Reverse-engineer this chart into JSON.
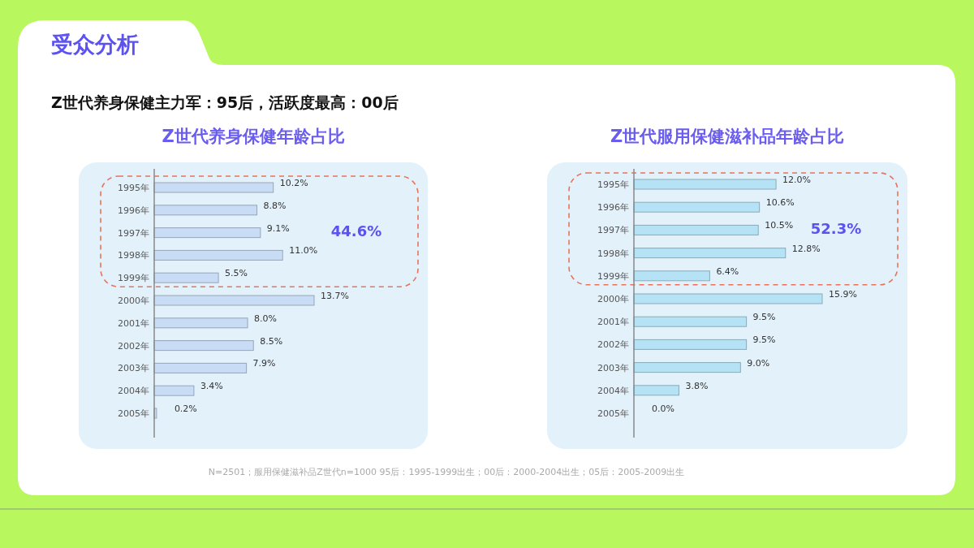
{
  "chart_data": [
    {
      "type": "other",
      "title": "受众分析",
      "subtitle": "Z世代养身保健主力军：95后，活跃度最高：00后",
      "annotations": [
        "N=2501；服用保健滋补品Z世代n=1000  95后：1995-1999出生；00后：2000-2004出生；05后：2005-2009出生"
      ]
    },
    {
      "type": "bar",
      "orientation": "horizontal",
      "title": "Z世代养身保健年龄占比",
      "categories": [
        "1995年",
        "1996年",
        "1997年",
        "1998年",
        "1999年",
        "2000年",
        "2001年",
        "2002年",
        "2003年",
        "2004年",
        "2005年"
      ],
      "series": [
        {
          "color": "#c9dcf5",
          "values": [
            10.2,
            8.8,
            9.1,
            11.0,
            5.5,
            13.7,
            8.0,
            8.5,
            7.9,
            3.4,
            0.2
          ],
          "value_labels": [
            "10.2%",
            "8.8%",
            "9.1%",
            "11.0%",
            "5.5%",
            "13.7%",
            "8.0%",
            "8.5%",
            "7.9%",
            "3.4%",
            "0.2%"
          ]
        }
      ],
      "annotations": [
        "44.6%"
      ]
    },
    {
      "type": "bar",
      "orientation": "horizontal",
      "title": "Z世代服用保健滋补品年龄占比",
      "categories": [
        "1995年",
        "1996年",
        "1997年",
        "1998年",
        "1999年",
        "2000年",
        "2001年",
        "2002年",
        "2003年",
        "2004年",
        "2005年"
      ],
      "series": [
        {
          "color": "#b5e3f5",
          "values": [
            12.0,
            10.6,
            10.5,
            12.8,
            6.4,
            15.9,
            9.5,
            9.5,
            9.0,
            3.8,
            0.0
          ],
          "value_labels": [
            "12.0%",
            "10.6%",
            "10.5%",
            "12.8%",
            "6.4%",
            "15.9%",
            "9.5%",
            "9.5%",
            "9.0%",
            "3.8%",
            "0.0%"
          ]
        }
      ],
      "annotations": [
        "52.3%"
      ]
    }
  ]
}
